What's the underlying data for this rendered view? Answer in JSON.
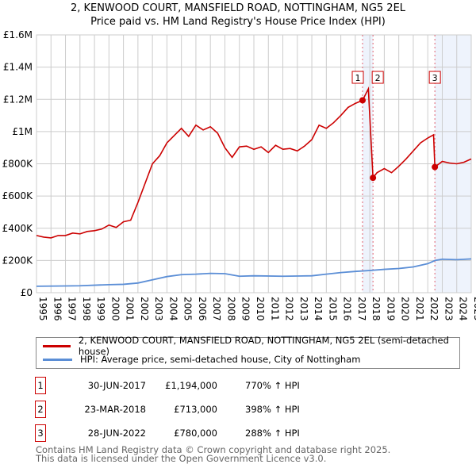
{
  "chart_data": {
    "type": "line",
    "title": "2, KENWOOD COURT, MANSFIELD ROAD, NOTTINGHAM, NG5 2EL",
    "subtitle": "Price paid vs. HM Land Registry's House Price Index (HPI)",
    "xlim": [
      1995,
      2025
    ],
    "ylim": [
      0,
      1600000
    ],
    "x_ticks": [
      "1995",
      "1996",
      "1997",
      "1998",
      "1999",
      "2000",
      "2001",
      "2002",
      "2003",
      "2004",
      "2005",
      "2006",
      "2007",
      "2008",
      "2009",
      "2010",
      "2011",
      "2012",
      "2013",
      "2014",
      "2015",
      "2016",
      "2017",
      "2018",
      "2019",
      "2020",
      "2021",
      "2022",
      "2023",
      "2024",
      "2025"
    ],
    "y_ticks": [
      {
        "v": 0,
        "label": "£0"
      },
      {
        "v": 200000,
        "label": "£200K"
      },
      {
        "v": 400000,
        "label": "£400K"
      },
      {
        "v": 600000,
        "label": "£600K"
      },
      {
        "v": 800000,
        "label": "£800K"
      },
      {
        "v": 1000000,
        "label": "£1M"
      },
      {
        "v": 1200000,
        "label": "£1.2M"
      },
      {
        "v": 1400000,
        "label": "£1.4M"
      },
      {
        "v": 1600000,
        "label": "£1.6M"
      }
    ],
    "grid": true,
    "series": [
      {
        "name": "2, KENWOOD COURT, MANSFIELD ROAD, NOTTINGHAM, NG5 2EL (semi-detached house)",
        "color": "#cc0000",
        "x": [
          1995,
          1995.5,
          1996,
          1996.5,
          1997,
          1997.5,
          1998,
          1998.5,
          1999,
          1999.5,
          2000,
          2000.5,
          2001,
          2001.5,
          2002,
          2002.5,
          2003,
          2003.5,
          2004,
          2004.5,
          2005,
          2005.5,
          2006,
          2006.5,
          2007,
          2007.5,
          2008,
          2008.5,
          2009,
          2009.5,
          2010,
          2010.5,
          2011,
          2011.5,
          2012,
          2012.5,
          2013,
          2013.5,
          2014,
          2014.5,
          2015,
          2015.5,
          2016,
          2016.5,
          2017,
          2017.5,
          2017.9,
          2018.22,
          2018.5,
          2019,
          2019.5,
          2020,
          2020.5,
          2021,
          2021.5,
          2022,
          2022.4,
          2022.49,
          2023,
          2023.5,
          2024,
          2024.5,
          2025
        ],
        "y": [
          355000,
          345000,
          340000,
          355000,
          355000,
          370000,
          365000,
          380000,
          385000,
          395000,
          420000,
          405000,
          440000,
          450000,
          560000,
          680000,
          800000,
          850000,
          930000,
          975000,
          1020000,
          970000,
          1040000,
          1010000,
          1030000,
          990000,
          900000,
          840000,
          905000,
          910000,
          890000,
          905000,
          870000,
          915000,
          890000,
          895000,
          880000,
          910000,
          950000,
          1040000,
          1020000,
          1055000,
          1100000,
          1150000,
          1175000,
          1194000,
          1265000,
          713000,
          745000,
          770000,
          745000,
          785000,
          830000,
          880000,
          930000,
          960000,
          980000,
          780000,
          815000,
          805000,
          800000,
          810000,
          830000
        ]
      },
      {
        "name": "HPI: Average price, semi-detached house, City of Nottingham",
        "color": "#5b8ed6",
        "x": [
          1995,
          1997,
          1998,
          2000,
          2001,
          2002,
          2003,
          2004,
          2005,
          2006,
          2007,
          2008,
          2009,
          2010,
          2012,
          2014,
          2015,
          2016,
          2017,
          2018,
          2019,
          2020,
          2021,
          2022,
          2022.5,
          2023,
          2024,
          2025
        ],
        "y": [
          40000,
          42000,
          43000,
          50000,
          52000,
          60000,
          80000,
          100000,
          112000,
          115000,
          120000,
          118000,
          102000,
          105000,
          102000,
          105000,
          115000,
          125000,
          132000,
          138000,
          145000,
          150000,
          160000,
          180000,
          200000,
          208000,
          205000,
          210000
        ]
      }
    ],
    "sales": [
      {
        "num": "1",
        "x": 2017.5,
        "y": 1194000,
        "date": "30-JUN-2017",
        "price": "£1,194,000",
        "hpi": "770% ↑ HPI"
      },
      {
        "num": "2",
        "x": 2018.22,
        "y": 713000,
        "date": "23-MAR-2018",
        "price": "£713,000",
        "hpi": "398% ↑ HPI"
      },
      {
        "num": "3",
        "x": 2022.49,
        "y": 780000,
        "date": "28-JUN-2022",
        "price": "£780,000",
        "hpi": "288% ↑ HPI"
      }
    ],
    "shaded": [
      [
        2017.5,
        2018.22
      ],
      [
        2022.49,
        2025
      ]
    ]
  },
  "footer": {
    "line1": "Contains HM Land Registry data © Crown copyright and database right 2025.",
    "line2": "This data is licensed under the Open Government Licence v3.0."
  }
}
